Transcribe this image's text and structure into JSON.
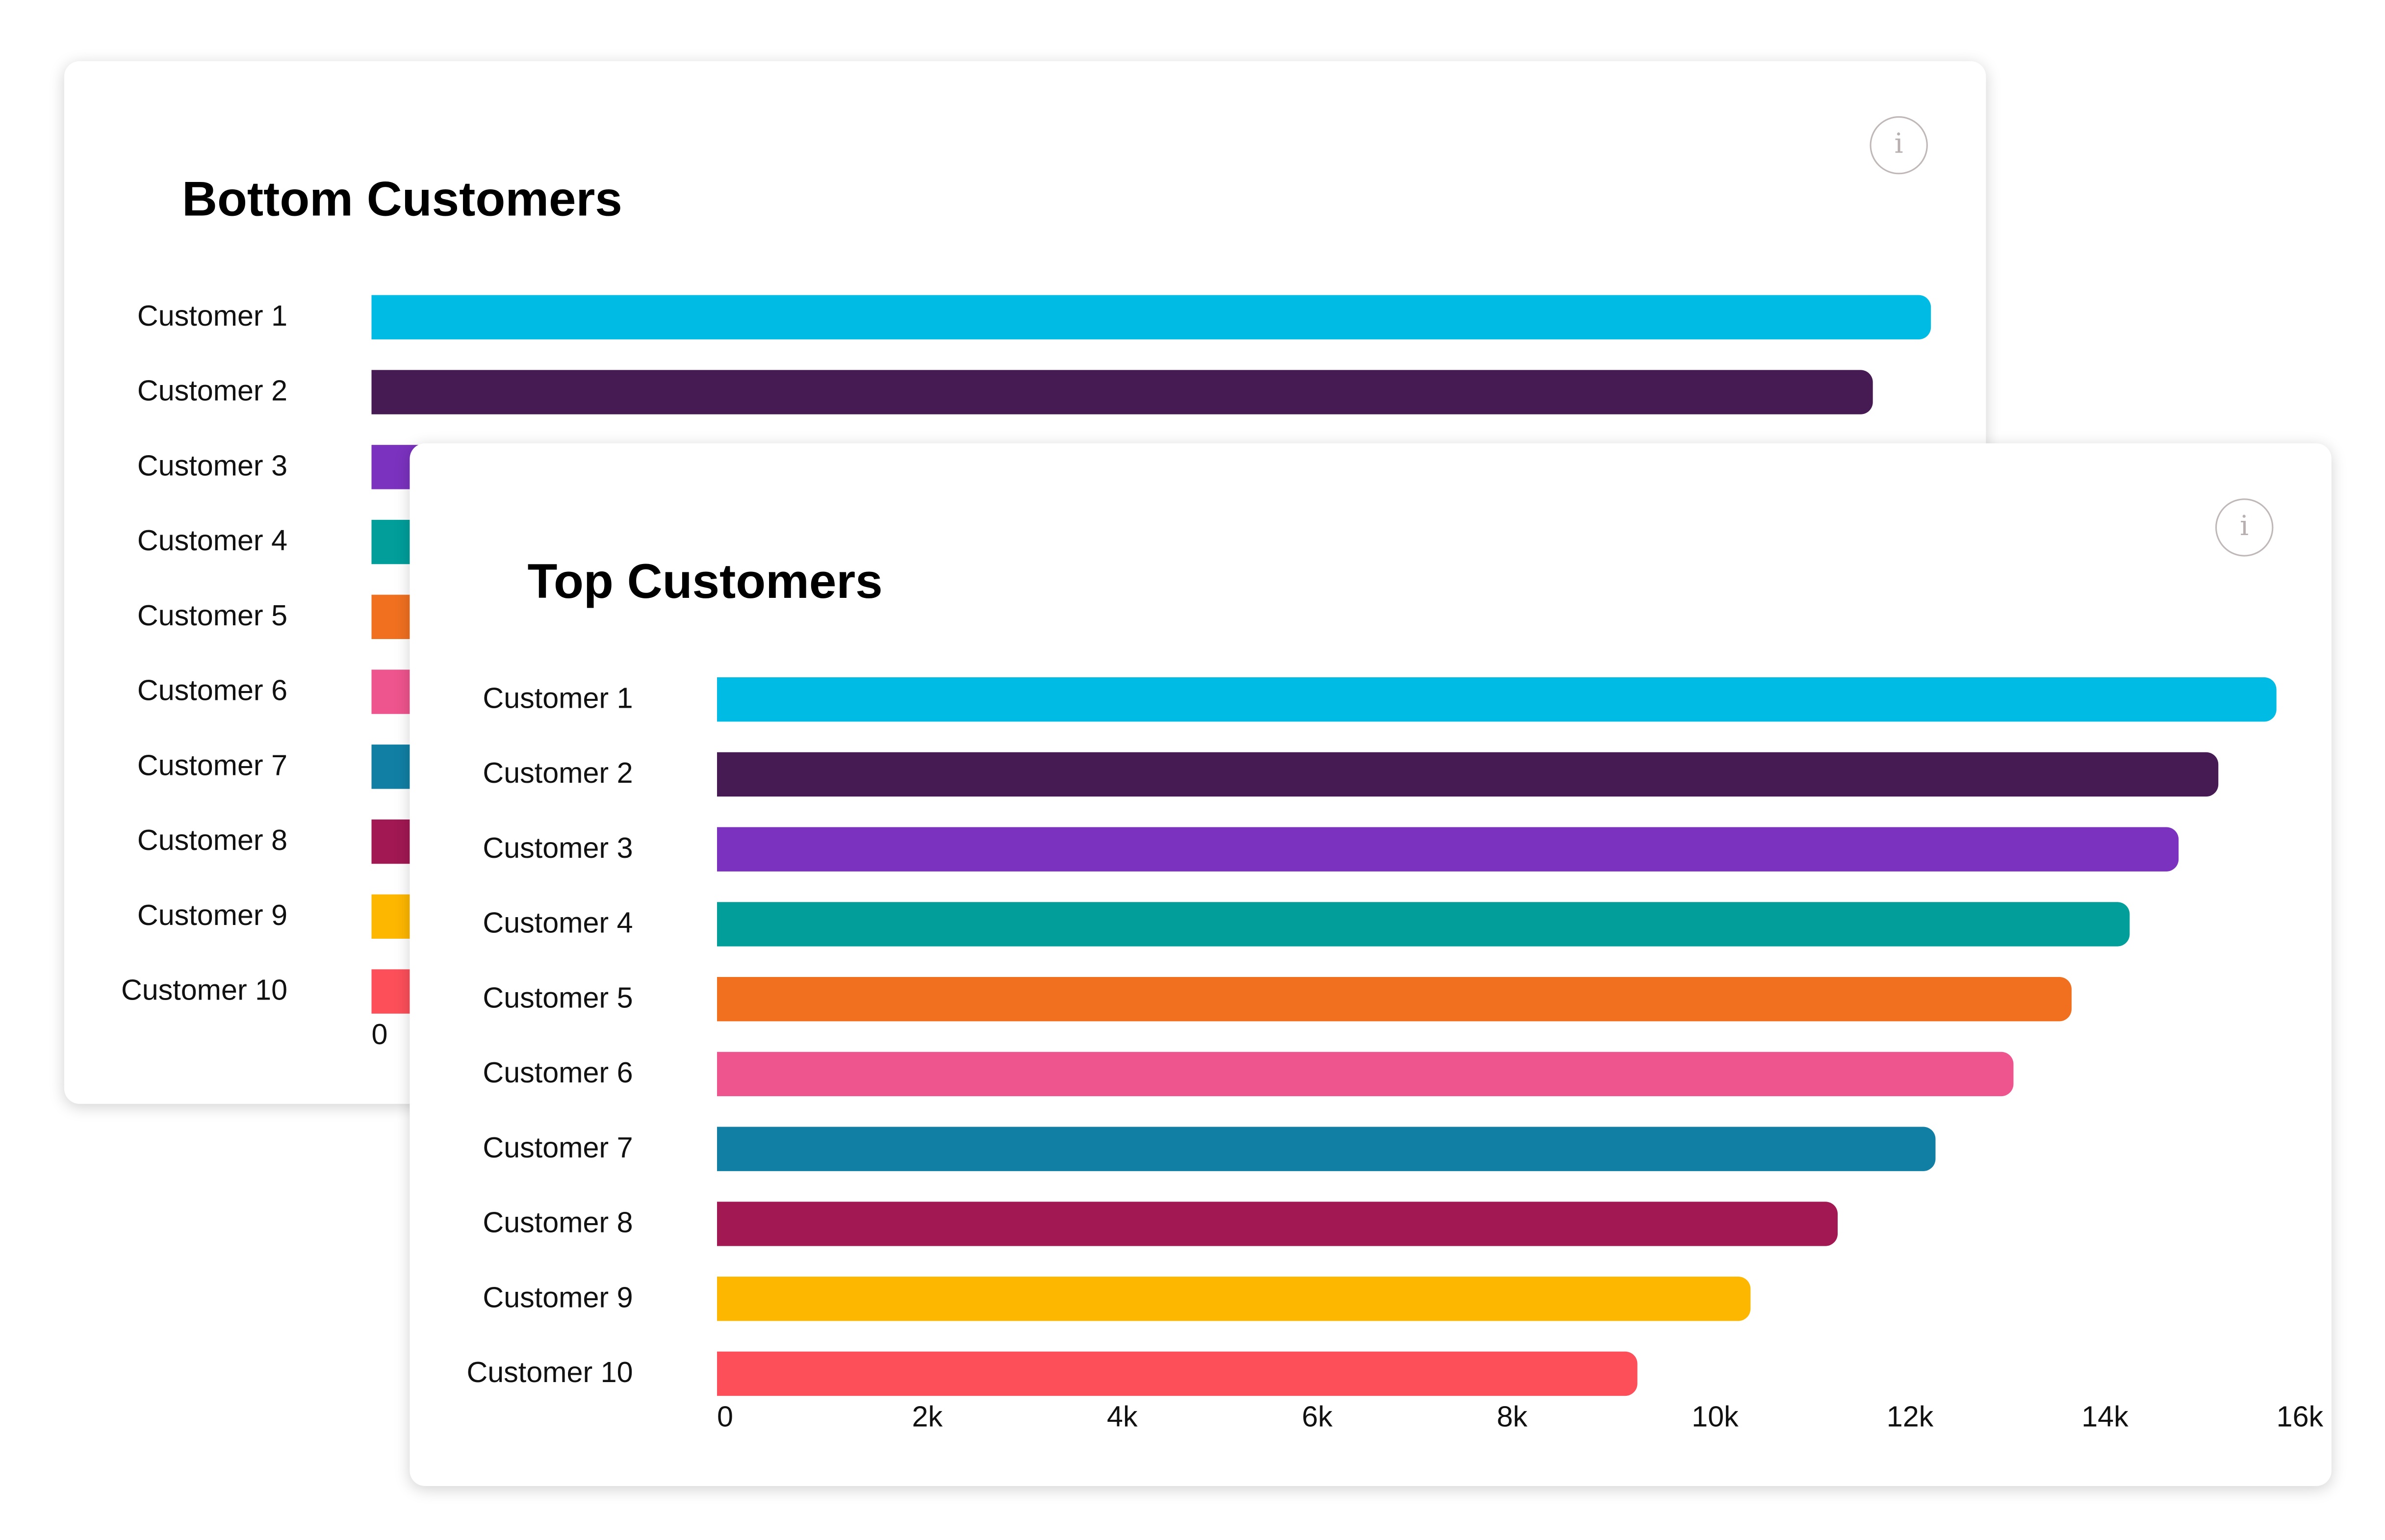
{
  "chart_data": [
    {
      "type": "bar",
      "orientation": "horizontal",
      "title": "Bottom Customers",
      "categories": [
        "Customer 1",
        "Customer 2",
        "Customer 3",
        "Customer 4",
        "Customer 5",
        "Customer 6",
        "Customer 7",
        "Customer 8",
        "Customer 9",
        "Customer 10"
      ],
      "values": [
        16000,
        15400,
        14900,
        14500,
        13900,
        13300,
        12500,
        11500,
        10600,
        9450
      ],
      "colors": [
        "#00bbe3",
        "#461a52",
        "#7b32bf",
        "#019e9a",
        "#f07020",
        "#ee548d",
        "#117fa4",
        "#a11852",
        "#feb700",
        "#fc4f5a"
      ],
      "xlim": [
        0,
        16000
      ],
      "xticks": [
        {
          "value": 0,
          "label": "0"
        }
      ],
      "grid": false
    },
    {
      "type": "bar",
      "orientation": "horizontal",
      "title": "Top Customers",
      "categories": [
        "Customer 1",
        "Customer 2",
        "Customer 3",
        "Customer 4",
        "Customer 5",
        "Customer 6",
        "Customer 7",
        "Customer 8",
        "Customer 9",
        "Customer 10"
      ],
      "values": [
        16000,
        15400,
        15000,
        14500,
        13900,
        13300,
        12500,
        11500,
        10600,
        9450
      ],
      "colors": [
        "#00bbe3",
        "#461a52",
        "#7b32bf",
        "#019e9a",
        "#f07020",
        "#ee548d",
        "#117fa4",
        "#a11852",
        "#feb700",
        "#fc4f5a"
      ],
      "xlim": [
        0,
        16000
      ],
      "xticks": [
        {
          "value": 0,
          "label": "0"
        },
        {
          "value": 2000,
          "label": "2k"
        },
        {
          "value": 4000,
          "label": "4k"
        },
        {
          "value": 6000,
          "label": "6k"
        },
        {
          "value": 8000,
          "label": "8k"
        },
        {
          "value": 10000,
          "label": "10k"
        },
        {
          "value": 12000,
          "label": "12k"
        },
        {
          "value": 14000,
          "label": "14k"
        },
        {
          "value": 16000,
          "label": "16k"
        }
      ],
      "grid": false
    }
  ],
  "info_icon": {
    "glyph": "i",
    "name": "info-icon"
  }
}
